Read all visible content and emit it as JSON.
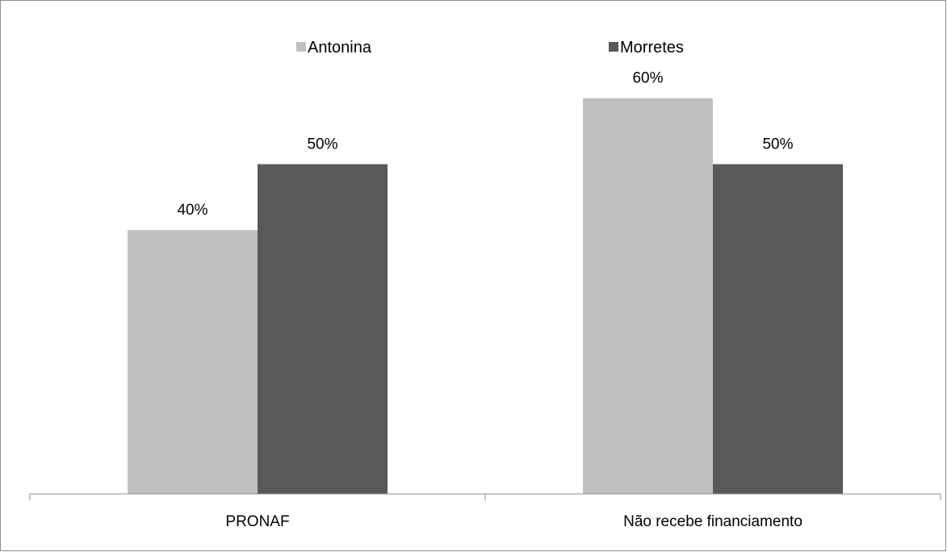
{
  "chart_data": {
    "type": "bar",
    "categories": [
      "PRONAF",
      "Não recebe financiamento"
    ],
    "series": [
      {
        "name": "Antonina",
        "values": [
          40,
          60
        ],
        "labels": [
          "40%",
          "60%"
        ],
        "color": "#c0c0c0"
      },
      {
        "name": "Morretes",
        "values": [
          50,
          50
        ],
        "labels": [
          "50%",
          "50%"
        ],
        "color": "#595959"
      }
    ],
    "ylim": [
      0,
      70
    ],
    "grid": false,
    "legend": "top-center",
    "title": "",
    "xlabel": "",
    "ylabel": ""
  }
}
